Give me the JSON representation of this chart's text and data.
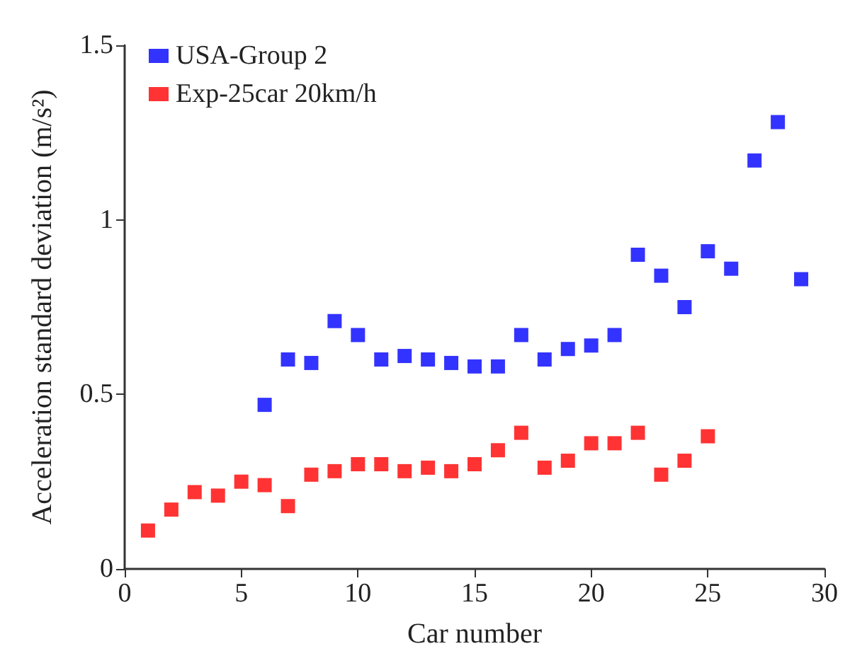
{
  "chart_data": {
    "type": "scatter",
    "xlabel": "Car number",
    "ylabel": "Acceleration standard deviation (m/s²)",
    "series": [
      {
        "name": "USA-Group 2",
        "color": "#0000ff",
        "x": [
          6,
          7,
          8,
          9,
          10,
          11,
          12,
          13,
          14,
          15,
          16,
          17,
          18,
          19,
          20,
          21,
          22,
          23,
          24,
          25,
          26,
          27,
          28,
          29
        ],
        "values": [
          0.47,
          0.6,
          0.59,
          0.71,
          0.67,
          0.6,
          0.61,
          0.6,
          0.59,
          0.58,
          0.58,
          0.67,
          0.6,
          0.63,
          0.64,
          0.67,
          0.9,
          0.84,
          0.75,
          0.91,
          0.86,
          1.17,
          1.28,
          0.83
        ]
      },
      {
        "name": "Exp-25car 20km/h",
        "color": "#ff0000",
        "x": [
          1,
          2,
          3,
          4,
          5,
          6,
          7,
          8,
          9,
          10,
          11,
          12,
          13,
          14,
          15,
          16,
          17,
          18,
          19,
          20,
          21,
          22,
          23,
          24,
          25
        ],
        "values": [
          0.11,
          0.17,
          0.22,
          0.21,
          0.25,
          0.24,
          0.18,
          0.27,
          0.28,
          0.3,
          0.3,
          0.28,
          0.29,
          0.28,
          0.3,
          0.34,
          0.39,
          0.29,
          0.31,
          0.36,
          0.36,
          0.39,
          0.27,
          0.31,
          0.38
        ]
      }
    ],
    "xlim": [
      0,
      30
    ],
    "xticks": [
      0,
      5,
      10,
      15,
      20,
      25,
      30
    ],
    "ylim": [
      0,
      1.5
    ],
    "yticks": [
      0,
      0.5,
      1,
      1.5
    ],
    "grid": false,
    "legend": "top left",
    "marker": "square"
  }
}
